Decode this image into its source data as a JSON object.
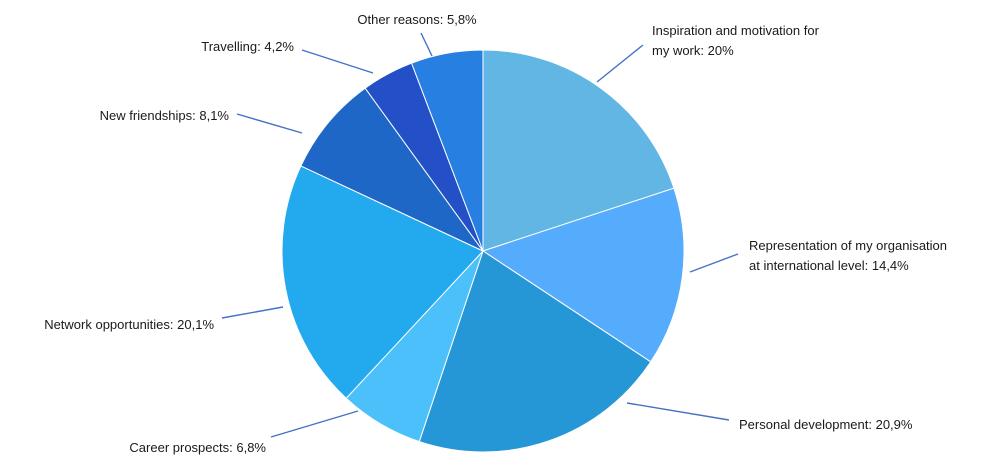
{
  "chart_data": {
    "type": "pie",
    "start_angle_deg": 0,
    "direction": "clockwise",
    "slices": [
      {
        "label_lines": [
          "Inspiration and motivation for",
          "my work: 20%"
        ],
        "category": "Inspiration and motivation for my work",
        "value": 20.0,
        "color": "#62B6E4"
      },
      {
        "label_lines": [
          "Representation of my organisation",
          "at international level: 14,4%"
        ],
        "category": "Representation of my organisation at international level",
        "value": 14.4,
        "color": "#56ACFC"
      },
      {
        "label_lines": [
          "Personal development: 20,9%"
        ],
        "category": "Personal development",
        "value": 20.9,
        "color": "#2596D6"
      },
      {
        "label_lines": [
          "Career prospects: 6,8%"
        ],
        "category": "Career prospects",
        "value": 6.8,
        "color": "#4CC0FA"
      },
      {
        "label_lines": [
          "Network opportunities: 20,1%"
        ],
        "category": "Network opportunities",
        "value": 20.1,
        "color": "#23A9EE"
      },
      {
        "label_lines": [
          "New friendships: 8,1%"
        ],
        "category": "New friendships",
        "value": 8.1,
        "color": "#1F67C6"
      },
      {
        "label_lines": [
          "Travelling: 4,2%"
        ],
        "category": "Travelling",
        "value": 4.2,
        "color": "#2350C6"
      },
      {
        "label_lines": [
          "Other reasons: 5,8%"
        ],
        "category": "Other reasons",
        "value": 5.8,
        "color": "#277FE1"
      }
    ]
  }
}
